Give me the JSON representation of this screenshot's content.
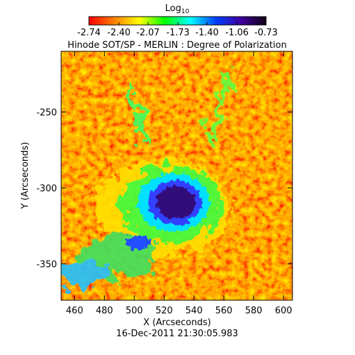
{
  "chart_data": {
    "type": "image",
    "title": "Hinode SOT/SP - MERLIN : Degree of Polarization",
    "colorbar_label": "Log",
    "colorbar_label_subscript": "10",
    "colorbar_lim": [
      -2.74,
      -0.73
    ],
    "colorbar_ticks": [
      -2.74,
      {
        "value": -2.4,
        "label": "-2.40"
      },
      -2.07,
      -1.73,
      {
        "value": -1.4,
        "label": "-1.40"
      },
      -1.06,
      -0.73
    ],
    "colorbar_colors": [
      "#ff0000",
      "#ff8000",
      "#ffff00",
      "#00ff00",
      "#00ffff",
      "#0040ff",
      "#4000a0",
      "#100010"
    ],
    "xlabel": "X (Arcseconds)",
    "ylabel": "Y (Arcseconds)",
    "footer": "16-Dec-2011 21:30:05.983",
    "xlim": [
      451,
      606
    ],
    "ylim": [
      -374,
      -210
    ],
    "xticks": [
      460,
      480,
      500,
      520,
      540,
      560,
      580,
      600
    ],
    "yticks": [
      -250,
      -300,
      -350
    ]
  }
}
